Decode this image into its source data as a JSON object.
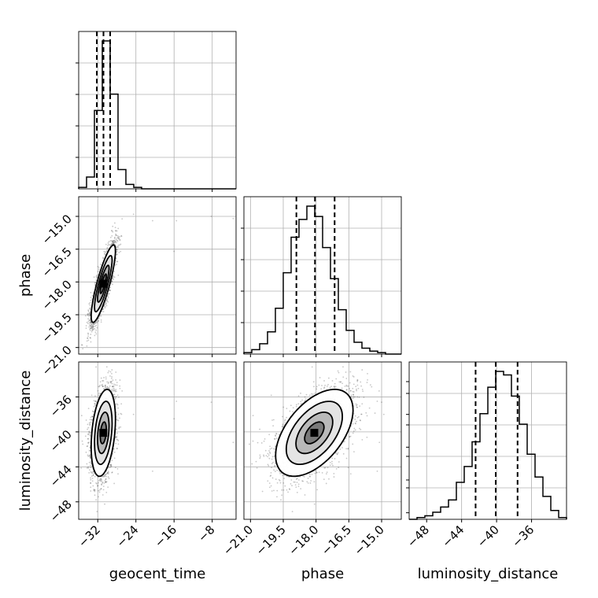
{
  "chart_data": {
    "type": "corner",
    "parameters": [
      "geocent_time",
      "phase",
      "luminosity_distance"
    ],
    "axis_labels": [
      "geocent_time",
      "phase",
      "luminosity_distance"
    ],
    "tick_labels": {
      "geocent_time": [
        "−32",
        "−24",
        "−16",
        "−8"
      ],
      "phase": [
        "−21.0",
        "−19.5",
        "−18.0",
        "−16.5",
        "−15.0"
      ],
      "luminosity_distance": [
        "−48",
        "−44",
        "−40",
        "−36"
      ]
    },
    "ranges": {
      "geocent_time": [
        -36,
        -3
      ],
      "phase": [
        -21.3,
        -14.1
      ],
      "luminosity_distance": [
        -50,
        -32
      ]
    },
    "ticks": {
      "geocent_time": [
        -32,
        -24,
        -16,
        -8
      ],
      "phase": [
        -21.0,
        -19.5,
        -18.0,
        -16.5,
        -15.0
      ],
      "luminosity_distance": [
        -48,
        -44,
        -40,
        -36
      ]
    },
    "histograms": {
      "geocent_time": {
        "bin_edges": [
          -36,
          -34.35,
          -32.7,
          -31.05,
          -29.4,
          -27.75,
          -26.1,
          -24.45,
          -22.8,
          -21.15,
          -19.5,
          -17.85,
          -16.2,
          -14.55,
          -12.9,
          -11.25,
          -9.6,
          -7.95,
          -6.3,
          -4.65,
          -3.0
        ],
        "counts": [
          1,
          8,
          53,
          100,
          64,
          13,
          3,
          1,
          0,
          0,
          0,
          0,
          0,
          0,
          0,
          0,
          0,
          0,
          0,
          0
        ],
        "quantile_lines": [
          -32.2,
          -30.8,
          -29.4
        ]
      },
      "phase": {
        "bin_edges": [
          -21.3,
          -20.94,
          -20.58,
          -20.22,
          -19.86,
          -19.5,
          -19.14,
          -18.78,
          -18.42,
          -18.06,
          -17.7,
          -17.34,
          -16.98,
          -16.62,
          -16.26,
          -15.9,
          -15.54,
          -15.18,
          -14.82,
          -14.46,
          -14.1
        ],
        "counts": [
          1,
          3,
          7,
          15,
          31,
          55,
          79,
          91,
          100,
          93,
          72,
          51,
          30,
          16,
          8,
          4,
          2,
          1,
          0,
          0
        ],
        "quantile_lines": [
          -18.9,
          -18.05,
          -17.15
        ]
      },
      "luminosity_distance": {
        "bin_edges": [
          -50,
          -49.1,
          -48.2,
          -47.3,
          -46.4,
          -45.5,
          -44.6,
          -43.7,
          -42.8,
          -41.9,
          -41.0,
          -40.1,
          -39.2,
          -38.3,
          -37.4,
          -36.5,
          -35.6,
          -34.7,
          -33.8,
          -32.9,
          -32.0
        ],
        "counts": [
          0,
          1,
          2,
          4,
          7,
          11,
          21,
          30,
          44,
          60,
          75,
          84,
          82,
          70,
          54,
          37,
          24,
          13,
          5,
          1
        ],
        "quantile_lines": [
          -42.4,
          -40.1,
          -37.6
        ]
      }
    },
    "scatter_samples": 2600,
    "contour_levels": [
      "inner",
      "middle",
      "outer"
    ],
    "quantile_lines": "dashed",
    "grid": true
  }
}
